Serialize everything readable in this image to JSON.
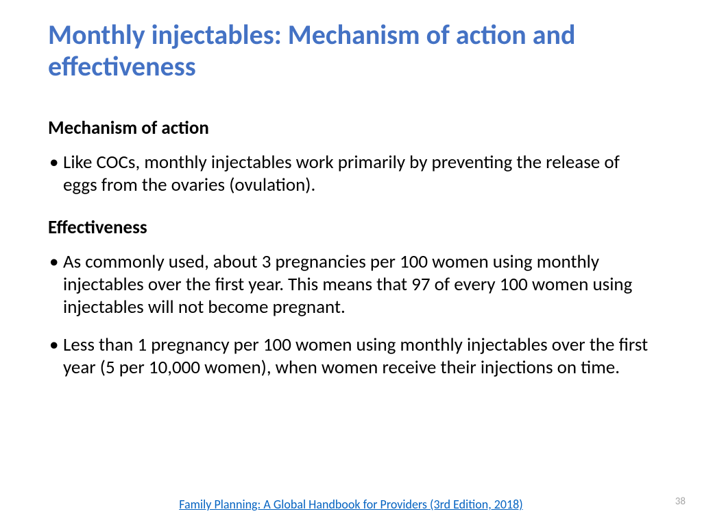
{
  "title": "Monthly injectables: Mechanism of action and effectiveness",
  "sections": [
    {
      "heading": "Mechanism of action",
      "bullets": [
        "Like COCs, monthly injectables work primarily by preventing the release of eggs from the ovaries (ovulation)."
      ]
    },
    {
      "heading": "Effectiveness",
      "bullets": [
        "As commonly used, about 3 pregnancies per 100 women using monthly injectables over the first year. This means that 97 of every 100 women using injectables will not become pregnant.",
        "Less than 1 pregnancy per 100 women using monthly injectables over the first year (5 per 10,000 women), when women receive their injections on time."
      ]
    }
  ],
  "footer_link_text": "Family Planning: A Global Handbook for Providers (3rd Edition, 2018)",
  "page_number": "38",
  "colors": {
    "title": "#4472c4",
    "body_text": "#000000",
    "link": "#0563c1",
    "page_num": "#a6a6a6",
    "background": "#ffffff"
  }
}
